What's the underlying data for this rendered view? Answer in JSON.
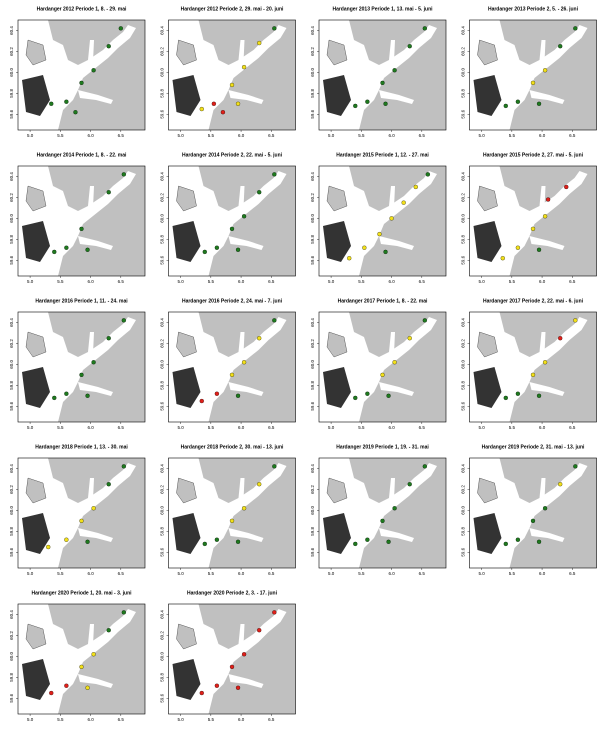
{
  "maps": [
    {
      "title": "Hardanger 2012 Periode 1, 8. - 29. mai",
      "points": [
        [
          5.35,
          59.7,
          "#1f7a1f"
        ],
        [
          5.6,
          59.72,
          "#1f7a1f"
        ],
        [
          5.85,
          59.9,
          "#1f7a1f"
        ],
        [
          6.05,
          60.02,
          "#1f7a1f"
        ],
        [
          6.3,
          60.25,
          "#1f7a1f"
        ],
        [
          6.5,
          60.42,
          "#1f7a1f"
        ],
        [
          5.75,
          59.62,
          "#1f7a1f"
        ]
      ]
    },
    {
      "title": "Hardanger 2012 Periode 2, 29. mai - 20. juni",
      "points": [
        [
          5.35,
          59.65,
          "#f2e01a"
        ],
        [
          5.55,
          59.7,
          "#e0201a"
        ],
        [
          5.7,
          59.62,
          "#e0201a"
        ],
        [
          5.85,
          59.88,
          "#f2e01a"
        ],
        [
          6.05,
          60.05,
          "#f2e01a"
        ],
        [
          6.3,
          60.28,
          "#f2e01a"
        ],
        [
          6.55,
          60.42,
          "#1f7a1f"
        ],
        [
          5.95,
          59.7,
          "#f2e01a"
        ]
      ]
    },
    {
      "title": "Hardanger 2013 Periode 1, 13. mai - 5. juni",
      "points": [
        [
          5.4,
          59.68,
          "#1f7a1f"
        ],
        [
          5.6,
          59.72,
          "#1f7a1f"
        ],
        [
          5.85,
          59.9,
          "#1f7a1f"
        ],
        [
          6.05,
          60.02,
          "#1f7a1f"
        ],
        [
          6.3,
          60.25,
          "#1f7a1f"
        ],
        [
          6.55,
          60.42,
          "#1f7a1f"
        ],
        [
          5.9,
          59.7,
          "#1f7a1f"
        ]
      ]
    },
    {
      "title": "Hardanger 2013 Periode 2, 5. - 26. juni",
      "points": [
        [
          5.4,
          59.68,
          "#1f7a1f"
        ],
        [
          5.6,
          59.72,
          "#1f7a1f"
        ],
        [
          5.85,
          59.9,
          "#f2e01a"
        ],
        [
          6.05,
          60.02,
          "#f2e01a"
        ],
        [
          6.3,
          60.25,
          "#1f7a1f"
        ],
        [
          6.55,
          60.42,
          "#1f7a1f"
        ],
        [
          5.95,
          59.7,
          "#1f7a1f"
        ]
      ]
    },
    {
      "title": "Hardanger 2014 Periode 1, 8. - 22. mai",
      "points": [
        [
          5.4,
          59.68,
          "#1f7a1f"
        ],
        [
          5.6,
          59.72,
          "#1f7a1f"
        ],
        [
          5.85,
          59.9,
          "#1f7a1f"
        ],
        [
          6.3,
          60.25,
          "#1f7a1f"
        ],
        [
          6.55,
          60.42,
          "#1f7a1f"
        ],
        [
          5.95,
          59.7,
          "#1f7a1f"
        ]
      ]
    },
    {
      "title": "Hardanger 2014 Periode 2, 22. mai - 5. juni",
      "points": [
        [
          5.4,
          59.68,
          "#1f7a1f"
        ],
        [
          5.6,
          59.72,
          "#1f7a1f"
        ],
        [
          5.85,
          59.9,
          "#1f7a1f"
        ],
        [
          6.05,
          60.02,
          "#1f7a1f"
        ],
        [
          6.3,
          60.25,
          "#1f7a1f"
        ],
        [
          6.55,
          60.42,
          "#1f7a1f"
        ],
        [
          5.95,
          59.7,
          "#1f7a1f"
        ]
      ]
    },
    {
      "title": "Hardanger 2015 Periode 1, 12. - 27. mai",
      "points": [
        [
          5.3,
          59.62,
          "#f2e01a"
        ],
        [
          5.55,
          59.72,
          "#f2e01a"
        ],
        [
          5.8,
          59.85,
          "#f2e01a"
        ],
        [
          6.0,
          60.0,
          "#f2e01a"
        ],
        [
          6.2,
          60.15,
          "#f2e01a"
        ],
        [
          6.4,
          60.3,
          "#f2e01a"
        ],
        [
          6.6,
          60.42,
          "#1f7a1f"
        ],
        [
          5.9,
          59.68,
          "#1f7a1f"
        ]
      ]
    },
    {
      "title": "Hardanger 2015 Periode 2, 27. mai - 5. juni",
      "points": [
        [
          5.35,
          59.62,
          "#f2e01a"
        ],
        [
          5.6,
          59.72,
          "#f2e01a"
        ],
        [
          5.85,
          59.9,
          "#f2e01a"
        ],
        [
          6.05,
          60.02,
          "#f2e01a"
        ],
        [
          6.1,
          60.18,
          "#e0201a"
        ],
        [
          6.4,
          60.3,
          "#e0201a"
        ],
        [
          5.95,
          59.7,
          "#1f7a1f"
        ]
      ]
    },
    {
      "title": "Hardanger 2016 Periode 1, 11. - 24. mai",
      "points": [
        [
          5.4,
          59.68,
          "#1f7a1f"
        ],
        [
          5.6,
          59.72,
          "#1f7a1f"
        ],
        [
          5.85,
          59.9,
          "#1f7a1f"
        ],
        [
          6.05,
          60.02,
          "#1f7a1f"
        ],
        [
          6.3,
          60.25,
          "#1f7a1f"
        ],
        [
          6.55,
          60.42,
          "#1f7a1f"
        ],
        [
          5.95,
          59.7,
          "#1f7a1f"
        ]
      ]
    },
    {
      "title": "Hardanger 2016 Periode 2, 24. mai - 7. juni",
      "points": [
        [
          5.35,
          59.65,
          "#e0201a"
        ],
        [
          5.6,
          59.72,
          "#e0201a"
        ],
        [
          5.85,
          59.9,
          "#f2e01a"
        ],
        [
          6.05,
          60.02,
          "#f2e01a"
        ],
        [
          6.3,
          60.25,
          "#f2e01a"
        ],
        [
          6.55,
          60.42,
          "#1f7a1f"
        ],
        [
          5.95,
          59.7,
          "#1f7a1f"
        ]
      ]
    },
    {
      "title": "Hardanger 2017 Periode 1, 8. - 22. mai",
      "points": [
        [
          5.4,
          59.68,
          "#1f7a1f"
        ],
        [
          5.6,
          59.72,
          "#1f7a1f"
        ],
        [
          5.85,
          59.9,
          "#f2e01a"
        ],
        [
          6.05,
          60.02,
          "#f2e01a"
        ],
        [
          6.3,
          60.25,
          "#f2e01a"
        ],
        [
          6.55,
          60.42,
          "#1f7a1f"
        ],
        [
          5.95,
          59.7,
          "#1f7a1f"
        ]
      ]
    },
    {
      "title": "Hardanger 2017 Periode 2, 22. mai - 6. juni",
      "points": [
        [
          5.4,
          59.68,
          "#1f7a1f"
        ],
        [
          5.6,
          59.72,
          "#1f7a1f"
        ],
        [
          5.85,
          59.9,
          "#f2e01a"
        ],
        [
          6.05,
          60.02,
          "#f2e01a"
        ],
        [
          6.3,
          60.25,
          "#e0201a"
        ],
        [
          6.55,
          60.42,
          "#f2e01a"
        ],
        [
          5.95,
          59.7,
          "#1f7a1f"
        ]
      ]
    },
    {
      "title": "Hardanger 2018 Periode 1, 13. - 30. mai",
      "points": [
        [
          5.3,
          59.65,
          "#f2e01a"
        ],
        [
          5.6,
          59.72,
          "#f2e01a"
        ],
        [
          5.85,
          59.9,
          "#f2e01a"
        ],
        [
          6.05,
          60.02,
          "#f2e01a"
        ],
        [
          6.3,
          60.25,
          "#1f7a1f"
        ],
        [
          6.55,
          60.42,
          "#1f7a1f"
        ],
        [
          5.95,
          59.7,
          "#1f7a1f"
        ]
      ]
    },
    {
      "title": "Hardanger 2018 Periode 2, 30. mai - 13. juni",
      "points": [
        [
          5.4,
          59.68,
          "#1f7a1f"
        ],
        [
          5.6,
          59.72,
          "#1f7a1f"
        ],
        [
          5.85,
          59.9,
          "#f2e01a"
        ],
        [
          6.05,
          60.02,
          "#f2e01a"
        ],
        [
          6.3,
          60.25,
          "#f2e01a"
        ],
        [
          6.55,
          60.42,
          "#1f7a1f"
        ],
        [
          5.95,
          59.7,
          "#1f7a1f"
        ]
      ]
    },
    {
      "title": "Hardanger 2019 Periode 1, 19. - 31. mai",
      "points": [
        [
          5.4,
          59.68,
          "#1f7a1f"
        ],
        [
          5.6,
          59.72,
          "#1f7a1f"
        ],
        [
          5.85,
          59.9,
          "#1f7a1f"
        ],
        [
          6.05,
          60.02,
          "#1f7a1f"
        ],
        [
          6.3,
          60.25,
          "#1f7a1f"
        ],
        [
          6.55,
          60.42,
          "#1f7a1f"
        ],
        [
          5.95,
          59.7,
          "#1f7a1f"
        ]
      ]
    },
    {
      "title": "Hardanger 2019 Periode 2, 31. mai - 13. juni",
      "points": [
        [
          5.4,
          59.68,
          "#1f7a1f"
        ],
        [
          5.6,
          59.72,
          "#1f7a1f"
        ],
        [
          5.85,
          59.9,
          "#1f7a1f"
        ],
        [
          6.05,
          60.02,
          "#1f7a1f"
        ],
        [
          6.3,
          60.25,
          "#f2e01a"
        ],
        [
          6.55,
          60.42,
          "#1f7a1f"
        ],
        [
          5.95,
          59.7,
          "#1f7a1f"
        ]
      ]
    },
    {
      "title": "Hardanger 2020 Periode 1, 20. mai - 3. juni",
      "points": [
        [
          5.35,
          59.65,
          "#e0201a"
        ],
        [
          5.6,
          59.72,
          "#e0201a"
        ],
        [
          5.85,
          59.9,
          "#f2e01a"
        ],
        [
          6.05,
          60.02,
          "#f2e01a"
        ],
        [
          6.3,
          60.25,
          "#1f7a1f"
        ],
        [
          6.55,
          60.42,
          "#1f7a1f"
        ],
        [
          5.95,
          59.7,
          "#f2e01a"
        ]
      ]
    },
    {
      "title": "Hardanger 2020 Periode 2, 3. - 17. juni",
      "points": [
        [
          5.35,
          59.65,
          "#e0201a"
        ],
        [
          5.6,
          59.72,
          "#e0201a"
        ],
        [
          5.85,
          59.9,
          "#e0201a"
        ],
        [
          6.05,
          60.02,
          "#e0201a"
        ],
        [
          6.3,
          60.25,
          "#e0201a"
        ],
        [
          6.55,
          60.42,
          "#e0201a"
        ],
        [
          5.95,
          59.7,
          "#e0201a"
        ]
      ]
    }
  ],
  "xlim": [
    4.8,
    6.9
  ],
  "ylim": [
    59.45,
    60.5
  ],
  "xticks": [
    {
      "value": 5,
      "label": "5.0"
    },
    5.5,
    {
      "value": 6,
      "label": "6.0"
    },
    6.5
  ],
  "yticks": [
    59.6,
    59.8,
    {
      "value": 60,
      "label": "60.0"
    },
    60.2,
    60.4
  ]
}
